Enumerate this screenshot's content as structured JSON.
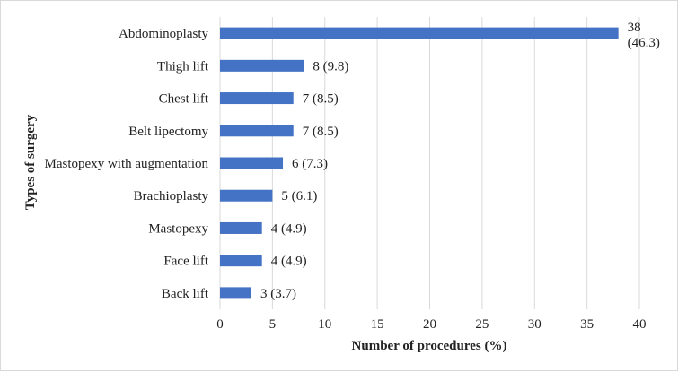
{
  "chart_data": {
    "type": "bar",
    "orientation": "horizontal",
    "categories": [
      "Abdominoplasty",
      "Thigh lift",
      "Chest lift",
      "Belt lipectomy",
      "Mastopexy with augmentation",
      "Brachioplasty",
      "Mastopexy",
      "Face lift",
      "Back lift"
    ],
    "values": [
      38,
      8,
      7,
      7,
      6,
      5,
      4,
      4,
      3
    ],
    "data_labels": [
      "38 (46.3)",
      "8 (9.8)",
      "7 (8.5)",
      "7 (8.5)",
      "6 (7.3)",
      "5 (6.1)",
      "4 (4.9)",
      "4 (4.9)",
      "3 (3.7)"
    ],
    "title": "",
    "xlabel": "Number of procedures (%)",
    "ylabel": "Types of surgery",
    "xlim": [
      0,
      40
    ],
    "xticks": [
      0,
      5,
      10,
      15,
      20,
      25,
      30,
      35,
      40
    ],
    "grid": "vertical",
    "legend": "none",
    "colors": {
      "bar": "#4472c4",
      "grid": "#d9d9d9",
      "text": "#222222"
    }
  }
}
